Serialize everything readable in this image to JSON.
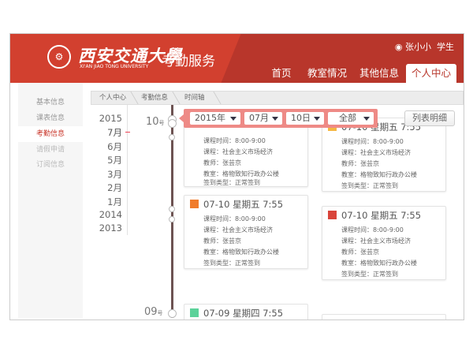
{
  "header": {
    "logo_cn": "西安交通大學",
    "logo_en": "XI'AN JIAO TONG UNIVERSITY",
    "app_title": "考勤服务",
    "user_name": "张小小",
    "user_role": "学生",
    "nav": [
      {
        "label": "首页"
      },
      {
        "label": "教室情况"
      },
      {
        "label": "其他信息"
      },
      {
        "label": "个人中心",
        "active": true
      }
    ]
  },
  "sidebar": {
    "items": [
      {
        "label": "基本信息"
      },
      {
        "label": "课表信息"
      },
      {
        "label": "考勤信息",
        "active": true
      },
      {
        "label": "请假申请"
      },
      {
        "label": "订阅信息"
      }
    ]
  },
  "breadcrumb": [
    "个人中心",
    "考勤信息",
    "时间轴"
  ],
  "years": [
    "2015",
    "7月",
    "6月",
    "5月",
    "3月",
    "2月",
    "1月",
    "2014",
    "2013"
  ],
  "timeline": {
    "day1": "10",
    "day2": "09",
    "day_suffix": "号"
  },
  "filter": {
    "year": "2015年",
    "month": "07月",
    "day": "10日",
    "type": "全部"
  },
  "list_button": "列表明细",
  "labels": {
    "time": "课程时间：",
    "course": "课程：",
    "teacher": "教师：",
    "room": "教室：",
    "type": "签到类型："
  },
  "cards": [
    {
      "title": "07-10 星期五 7:55",
      "time": "8:00-9:00",
      "course": "社会主义市场经济",
      "teacher": "张芸京",
      "room": "格物致知行政办公楼",
      "type": "正常签到",
      "color": "#f5b742"
    },
    {
      "title": "07-10 星期五 7:55",
      "time": "8:00-9:00",
      "course": "社会主义市场经济",
      "teacher": "张芸京",
      "room": "格物致知行政办公楼",
      "type": "正常签到",
      "color": "#f07c2c"
    },
    {
      "title": "07-10 星期五 7:55",
      "time": "8:00-9:00",
      "course": "社会主义市场经济",
      "teacher": "张芸京",
      "room": "格物致知行政办公楼",
      "type": "正常签到",
      "color": "#d9443a"
    },
    {
      "title": "07-09 星期四 7:55",
      "color": "#5cd29a"
    }
  ]
}
